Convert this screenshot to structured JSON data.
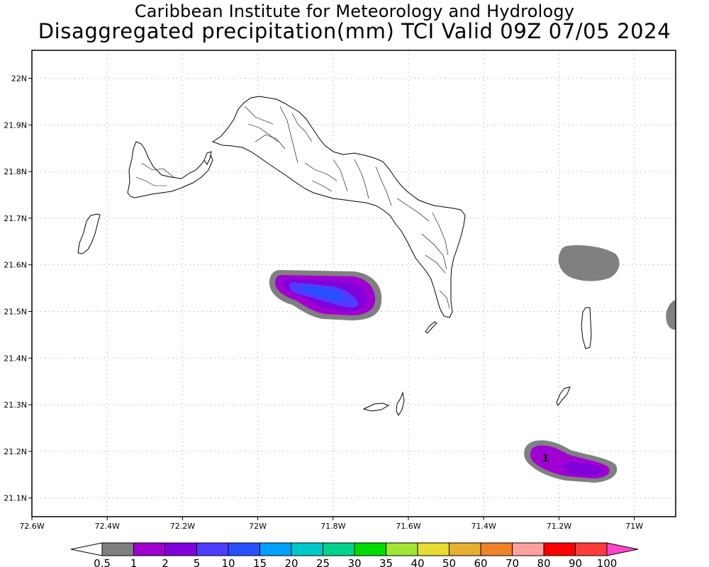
{
  "header": {
    "line1": "Caribbean Institute for Meteorology and Hydrology",
    "line2": "Disaggregated precipitation(mm) TCI Valid 09Z 07/05 2024"
  },
  "map": {
    "lon_range": [
      -72.6,
      -70.89
    ],
    "lat_range": [
      21.06,
      22.06
    ],
    "lon_ticks": [
      {
        "value": -72.6,
        "label": "72.6W"
      },
      {
        "value": -72.4,
        "label": "72.4W"
      },
      {
        "value": -72.2,
        "label": "72.2W"
      },
      {
        "value": -72.0,
        "label": "72W"
      },
      {
        "value": -71.8,
        "label": "71.8W"
      },
      {
        "value": -71.6,
        "label": "71.6W"
      },
      {
        "value": -71.4,
        "label": "71.4W"
      },
      {
        "value": -71.2,
        "label": "71.2W"
      },
      {
        "value": -71.0,
        "label": "71W"
      }
    ],
    "lat_ticks": [
      {
        "value": 22.0,
        "label": "22N"
      },
      {
        "value": 21.9,
        "label": "21.9N"
      },
      {
        "value": 21.8,
        "label": "21.8N"
      },
      {
        "value": 21.7,
        "label": "21.7N"
      },
      {
        "value": 21.6,
        "label": "21.6N"
      },
      {
        "value": 21.5,
        "label": "21.5N"
      },
      {
        "value": 21.4,
        "label": "21.4N"
      },
      {
        "value": 21.3,
        "label": "21.3N"
      },
      {
        "value": 21.2,
        "label": "21.2N"
      },
      {
        "value": 21.1,
        "label": "21.1N"
      }
    ],
    "grid": true,
    "cell_annotation": "1"
  },
  "colorbar": {
    "boundaries": [
      "0.5",
      "1",
      "2",
      "5",
      "10",
      "15",
      "20",
      "25",
      "30",
      "35",
      "40",
      "50",
      "60",
      "70",
      "80",
      "90",
      "100"
    ],
    "colors": [
      "#ffffff",
      "#808080",
      "#a000d2",
      "#8200dc",
      "#503cff",
      "#2850ff",
      "#00a0ff",
      "#00c8c8",
      "#00d28c",
      "#00dc00",
      "#a0e632",
      "#e6dc32",
      "#e6af2d",
      "#f08228",
      "#ffa0a0",
      "#ff0000",
      "#ff3c3c",
      "#ff46c8"
    ]
  }
}
